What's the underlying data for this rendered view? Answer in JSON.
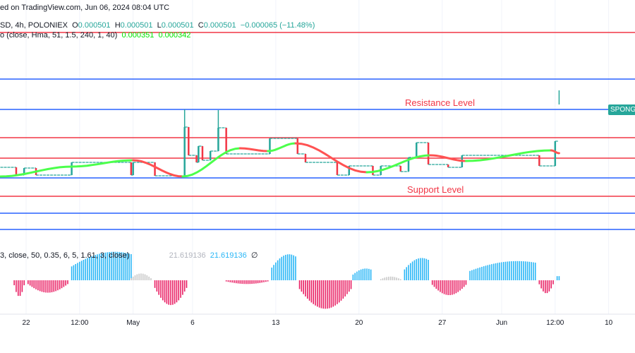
{
  "header": {
    "published": "ed on TradingView.com, Jun 06, 2024 08:04 UTC",
    "symbol": "SD, 4h, POLONIEX",
    "o_label": "O",
    "o": "0.000501",
    "h_label": "H",
    "h": "0.000501",
    "l_label": "L",
    "l": "0.000501",
    "c_label": "C",
    "c": "0.000501",
    "change": "−0.000065 (−11.48%)",
    "indicator1": "o (close, Hma, 51, 1.5, 240, 1, 40)",
    "indicator1_v1": "0.000351",
    "indicator1_v2": "0.000342",
    "indicator2": "3, close, 50, 0.35, 6, 5, 1.61, 3, close)",
    "indicator2_v1": "21.619136",
    "indicator2_v2": "21.619136",
    "indicator2_na": "∅"
  },
  "labels": {
    "resistance": "Resistance Level",
    "support": "Support Level",
    "symbol_tag": "SPONG"
  },
  "colors": {
    "up": "#26a69a",
    "down": "#f23645",
    "hma_up": "#4cff4c",
    "hma_down": "#ff5252",
    "hist_up": "#29b6f6",
    "hist_down": "#e91e63",
    "hist_neutral": "#c8c8c8",
    "red_line": "#f23645",
    "blue_line": "#2962ff"
  },
  "chart_data": {
    "type": "line",
    "x_ticks": [
      "22",
      "12:00",
      "May",
      "6",
      "13",
      "20",
      "27",
      "Jun",
      "12:00",
      "10"
    ],
    "x_tick_dates": [
      "2024-04-22 00:00",
      "2024-04-26 12:00",
      "2024-05-01 00:00",
      "2024-05-06 00:00",
      "2024-05-13 00:00",
      "2024-05-20 00:00",
      "2024-05-27 00:00",
      "2024-06-01 00:00",
      "2024-06-05 12:00",
      "2024-06-10 00:00"
    ],
    "horizontal_levels": [
      {
        "price": 0.000951,
        "color": "red"
      },
      {
        "price": 0.000753,
        "color": "blue"
      },
      {
        "price": 0.000624,
        "color": "blue",
        "label": "resistance"
      },
      {
        "price": 0.000504,
        "color": "red"
      },
      {
        "price": 0.000417,
        "color": "red"
      },
      {
        "price": 0.000333,
        "color": "blue"
      },
      {
        "price": 0.000255,
        "color": "red",
        "label": "support"
      },
      {
        "price": 0.000183,
        "color": "blue"
      },
      {
        "price": 0.000114,
        "color": "blue"
      }
    ],
    "price_steps": [
      [
        "2024-04-19 20:00",
        0.000378
      ],
      [
        "2024-04-21 04:00",
        0.000345
      ],
      [
        "2024-04-21 20:00",
        0.000375
      ],
      [
        "2024-04-22 20:00",
        0.000345
      ],
      [
        "2024-04-25 20:00",
        0.000399
      ],
      [
        "2024-04-30 20:00",
        0.000345
      ],
      [
        "2024-05-01 00:00",
        0.000399
      ],
      [
        "2024-05-02 20:00",
        0.000342
      ],
      [
        "2024-05-05 04:00",
        0.000339
      ],
      [
        "2024-05-05 08:00",
        0.000549
      ],
      [
        "2024-05-05 16:00",
        0.000429
      ],
      [
        "2024-05-06 08:00",
        0.000399
      ],
      [
        "2024-05-06 12:00",
        0.000468
      ],
      [
        "2024-05-06 20:00",
        0.000408
      ],
      [
        "2024-05-07 12:00",
        0.000447
      ],
      [
        "2024-05-08 04:00",
        0.000546
      ],
      [
        "2024-05-08 20:00",
        0.000435
      ],
      [
        "2024-05-12 12:00",
        0.000501
      ],
      [
        "2024-05-14 20:00",
        0.000435
      ],
      [
        "2024-05-15 12:00",
        0.000399
      ],
      [
        "2024-05-18 04:00",
        0.000345
      ],
      [
        "2024-05-19 04:00",
        0.000384
      ],
      [
        "2024-05-21 04:00",
        0.000345
      ],
      [
        "2024-05-21 20:00",
        0.000384
      ],
      [
        "2024-05-23 12:00",
        0.00036
      ],
      [
        "2024-05-24 04:00",
        0.00042
      ],
      [
        "2024-05-24 20:00",
        0.000483
      ],
      [
        "2024-05-25 20:00",
        0.00039
      ],
      [
        "2024-05-27 12:00",
        0.000378
      ],
      [
        "2024-05-28 16:00",
        0.000429
      ],
      [
        "2024-06-04 04:00",
        0.000384
      ],
      [
        "2024-06-05 12:00",
        0.000489
      ]
    ],
    "wicks": [
      [
        "2024-05-05 08:00",
        0.000549,
        0.000624
      ],
      [
        "2024-05-08 04:00",
        0.000546,
        0.000621
      ],
      [
        "2024-06-05 20:00",
        0.000645,
        0.000705
      ]
    ],
    "hma": [
      [
        "2024-04-19 20:00",
        0.000339
      ],
      [
        "2024-04-25 20:00",
        0.000381
      ],
      [
        "2024-05-01 00:00",
        0.000408
      ],
      [
        "2024-05-05 04:00",
        0.000339
      ],
      [
        "2024-05-10 00:00",
        0.000459
      ],
      [
        "2024-05-12 08:00",
        0.000447
      ],
      [
        "2024-05-14 16:00",
        0.00048
      ],
      [
        "2024-05-20 16:00",
        0.000357
      ],
      [
        "2024-05-26 00:00",
        0.000429
      ],
      [
        "2024-05-29 00:00",
        0.000405
      ],
      [
        "2024-06-05 04:00",
        0.00045
      ],
      [
        "2024-06-05 20:00",
        0.000438
      ]
    ],
    "histogram_segments": [
      [
        "2024-04-21 00:00",
        "2024-04-21 20:00",
        -26,
        "down"
      ],
      [
        "2024-04-22 04:00",
        "2024-04-25 12:00",
        -20,
        "down"
      ],
      [
        "2024-04-25 20:00",
        "2024-04-30 20:00",
        46,
        "up"
      ],
      [
        "2024-04-30 20:00",
        "2024-05-02 12:00",
        11,
        "neutral"
      ],
      [
        "2024-05-02 20:00",
        "2024-05-05 12:00",
        -40,
        "down"
      ],
      [
        "2024-05-08 20:00",
        "2024-05-12 08:00",
        -6,
        "down"
      ],
      [
        "2024-05-12 16:00",
        "2024-05-14 16:00",
        42,
        "up"
      ],
      [
        "2024-05-15 00:00",
        "2024-05-19 08:00",
        -46,
        "down"
      ],
      [
        "2024-05-19 12:00",
        "2024-05-21 00:00",
        19,
        "up"
      ],
      [
        "2024-05-21 20:00",
        "2024-05-23 12:00",
        6,
        "neutral"
      ],
      [
        "2024-05-23 20:00",
        "2024-05-25 20:00",
        36,
        "up"
      ],
      [
        "2024-05-26 04:00",
        "2024-05-29 00:00",
        -24,
        "down"
      ],
      [
        "2024-05-29 08:00",
        "2024-06-03 20:00",
        31,
        "up"
      ],
      [
        "2024-06-04 04:00",
        "2024-06-05 08:00",
        -21,
        "down"
      ],
      [
        "2024-06-05 16:00",
        "2024-06-05 20:00",
        21.62,
        "up"
      ]
    ]
  }
}
